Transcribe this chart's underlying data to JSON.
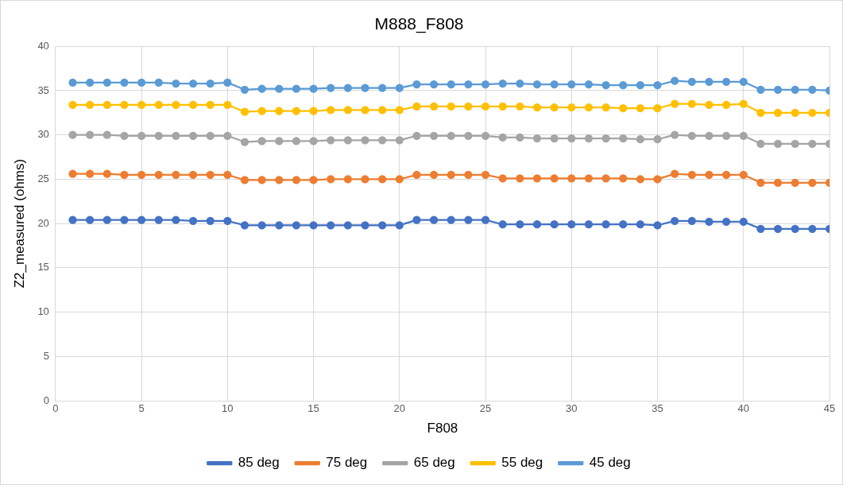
{
  "chart_data": {
    "type": "line",
    "title": "M888_F808",
    "xlabel": "F808",
    "ylabel": "Z2_measured (ohms)",
    "x": [
      1,
      2,
      3,
      4,
      5,
      6,
      7,
      8,
      9,
      10,
      11,
      12,
      13,
      14,
      15,
      16,
      17,
      18,
      19,
      20,
      21,
      22,
      23,
      24,
      25,
      26,
      27,
      28,
      29,
      30,
      31,
      32,
      33,
      34,
      35,
      36,
      37,
      38,
      39,
      40,
      41,
      42,
      43,
      44,
      45
    ],
    "series": [
      {
        "name": "85 deg",
        "color": "#4472c4",
        "values": [
          20.4,
          20.4,
          20.4,
          20.4,
          20.4,
          20.4,
          20.4,
          20.3,
          20.3,
          20.3,
          19.8,
          19.8,
          19.8,
          19.8,
          19.8,
          19.8,
          19.8,
          19.8,
          19.8,
          19.8,
          20.4,
          20.4,
          20.4,
          20.4,
          20.4,
          19.9,
          19.9,
          19.9,
          19.9,
          19.9,
          19.9,
          19.9,
          19.9,
          19.9,
          19.8,
          20.3,
          20.3,
          20.2,
          20.2,
          20.2,
          19.4,
          19.4,
          19.4,
          19.4,
          19.4
        ]
      },
      {
        "name": "75 deg",
        "color": "#ed7d31",
        "values": [
          25.6,
          25.6,
          25.6,
          25.5,
          25.5,
          25.5,
          25.5,
          25.5,
          25.5,
          25.5,
          24.9,
          24.9,
          24.9,
          24.9,
          24.9,
          25.0,
          25.0,
          25.0,
          25.0,
          25.0,
          25.5,
          25.5,
          25.5,
          25.5,
          25.5,
          25.1,
          25.1,
          25.1,
          25.1,
          25.1,
          25.1,
          25.1,
          25.1,
          25.0,
          25.0,
          25.6,
          25.5,
          25.5,
          25.5,
          25.5,
          24.6,
          24.6,
          24.6,
          24.6,
          24.6
        ]
      },
      {
        "name": "65 deg",
        "color": "#a5a5a5",
        "values": [
          30.0,
          30.0,
          30.0,
          29.9,
          29.9,
          29.9,
          29.9,
          29.9,
          29.9,
          29.9,
          29.2,
          29.3,
          29.3,
          29.3,
          29.3,
          29.4,
          29.4,
          29.4,
          29.4,
          29.4,
          29.9,
          29.9,
          29.9,
          29.9,
          29.9,
          29.7,
          29.7,
          29.6,
          29.6,
          29.6,
          29.6,
          29.6,
          29.6,
          29.5,
          29.5,
          30.0,
          29.9,
          29.9,
          29.9,
          29.9,
          29.0,
          29.0,
          29.0,
          29.0,
          29.0
        ]
      },
      {
        "name": "55 deg",
        "color": "#ffc000",
        "values": [
          33.4,
          33.4,
          33.4,
          33.4,
          33.4,
          33.4,
          33.4,
          33.4,
          33.4,
          33.4,
          32.6,
          32.7,
          32.7,
          32.7,
          32.7,
          32.8,
          32.8,
          32.8,
          32.8,
          32.8,
          33.2,
          33.2,
          33.2,
          33.2,
          33.2,
          33.2,
          33.2,
          33.1,
          33.1,
          33.1,
          33.1,
          33.1,
          33.0,
          33.0,
          33.0,
          33.5,
          33.5,
          33.4,
          33.4,
          33.5,
          32.5,
          32.5,
          32.5,
          32.5,
          32.5
        ]
      },
      {
        "name": "45 deg",
        "color": "#5b9bd5",
        "values": [
          35.9,
          35.9,
          35.9,
          35.9,
          35.9,
          35.9,
          35.8,
          35.8,
          35.8,
          35.9,
          35.1,
          35.2,
          35.2,
          35.2,
          35.2,
          35.3,
          35.3,
          35.3,
          35.3,
          35.3,
          35.7,
          35.7,
          35.7,
          35.7,
          35.7,
          35.8,
          35.8,
          35.7,
          35.7,
          35.7,
          35.7,
          35.6,
          35.6,
          35.6,
          35.6,
          36.1,
          36.0,
          36.0,
          36.0,
          36.0,
          35.1,
          35.1,
          35.1,
          35.1,
          35.0
        ]
      }
    ],
    "xlim": [
      0,
      45
    ],
    "xticks": [
      0,
      5,
      10,
      15,
      20,
      25,
      30,
      35,
      40,
      45
    ],
    "ylim": [
      0,
      40
    ],
    "yticks": [
      0,
      5,
      10,
      15,
      20,
      25,
      30,
      35,
      40
    ],
    "grid": true,
    "legend": "bottom",
    "marker": "circle",
    "line_style": "solid"
  }
}
